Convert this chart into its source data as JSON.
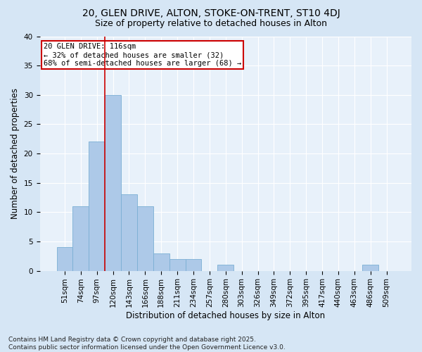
{
  "title1": "20, GLEN DRIVE, ALTON, STOKE-ON-TRENT, ST10 4DJ",
  "title2": "Size of property relative to detached houses in Alton",
  "xlabel": "Distribution of detached houses by size in Alton",
  "ylabel": "Number of detached properties",
  "categories": [
    "51sqm",
    "74sqm",
    "97sqm",
    "120sqm",
    "143sqm",
    "166sqm",
    "188sqm",
    "211sqm",
    "234sqm",
    "257sqm",
    "280sqm",
    "303sqm",
    "326sqm",
    "349sqm",
    "372sqm",
    "395sqm",
    "417sqm",
    "440sqm",
    "463sqm",
    "486sqm",
    "509sqm"
  ],
  "values": [
    4,
    11,
    22,
    30,
    13,
    11,
    3,
    2,
    2,
    0,
    1,
    0,
    0,
    0,
    0,
    0,
    0,
    0,
    0,
    1,
    0
  ],
  "bar_color": "#adc9e8",
  "bar_edge_color": "#7aafd4",
  "highlight_line_index": 3,
  "highlight_line_color": "#cc0000",
  "annotation_line1": "20 GLEN DRIVE: 116sqm",
  "annotation_line2": "← 32% of detached houses are smaller (32)",
  "annotation_line3": "68% of semi-detached houses are larger (68) →",
  "annotation_box_color": "#ffffff",
  "annotation_box_edge": "#cc0000",
  "ylim": [
    0,
    40
  ],
  "yticks": [
    0,
    5,
    10,
    15,
    20,
    25,
    30,
    35,
    40
  ],
  "footer": "Contains HM Land Registry data © Crown copyright and database right 2025.\nContains public sector information licensed under the Open Government Licence v3.0.",
  "bg_color": "#d6e6f5",
  "plot_bg_color": "#e8f1fa",
  "title_fontsize": 10,
  "subtitle_fontsize": 9,
  "axis_label_fontsize": 8.5,
  "tick_fontsize": 7.5,
  "annotation_fontsize": 7.5,
  "footer_fontsize": 6.5
}
